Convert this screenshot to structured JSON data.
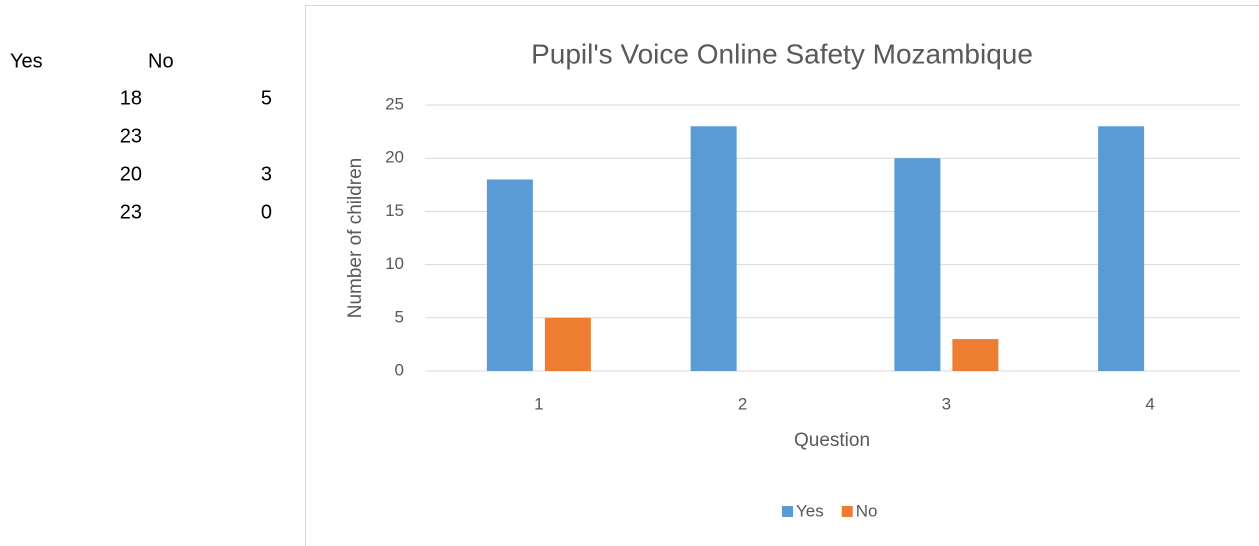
{
  "table": {
    "headers": [
      "Yes",
      "No"
    ],
    "rows": [
      [
        18,
        5
      ],
      [
        23,
        null
      ],
      [
        20,
        3
      ],
      [
        23,
        0
      ]
    ]
  },
  "chart_data": {
    "type": "bar",
    "title": "Pupil's Voice Online Safety Mozambique",
    "x_label": "Question",
    "y_label": "Number of children",
    "categories": [
      "1",
      "2",
      "3",
      "4"
    ],
    "series": [
      {
        "name": "Yes",
        "color": "#5b9bd5",
        "values": [
          18,
          23,
          20,
          23
        ]
      },
      {
        "name": "No",
        "color": "#ed7d31",
        "values": [
          5,
          null,
          3,
          0
        ]
      }
    ],
    "ylim": [
      0,
      25
    ],
    "yticks": [
      0,
      5,
      10,
      15,
      20,
      25
    ],
    "grid": true,
    "legend": "bottom"
  }
}
